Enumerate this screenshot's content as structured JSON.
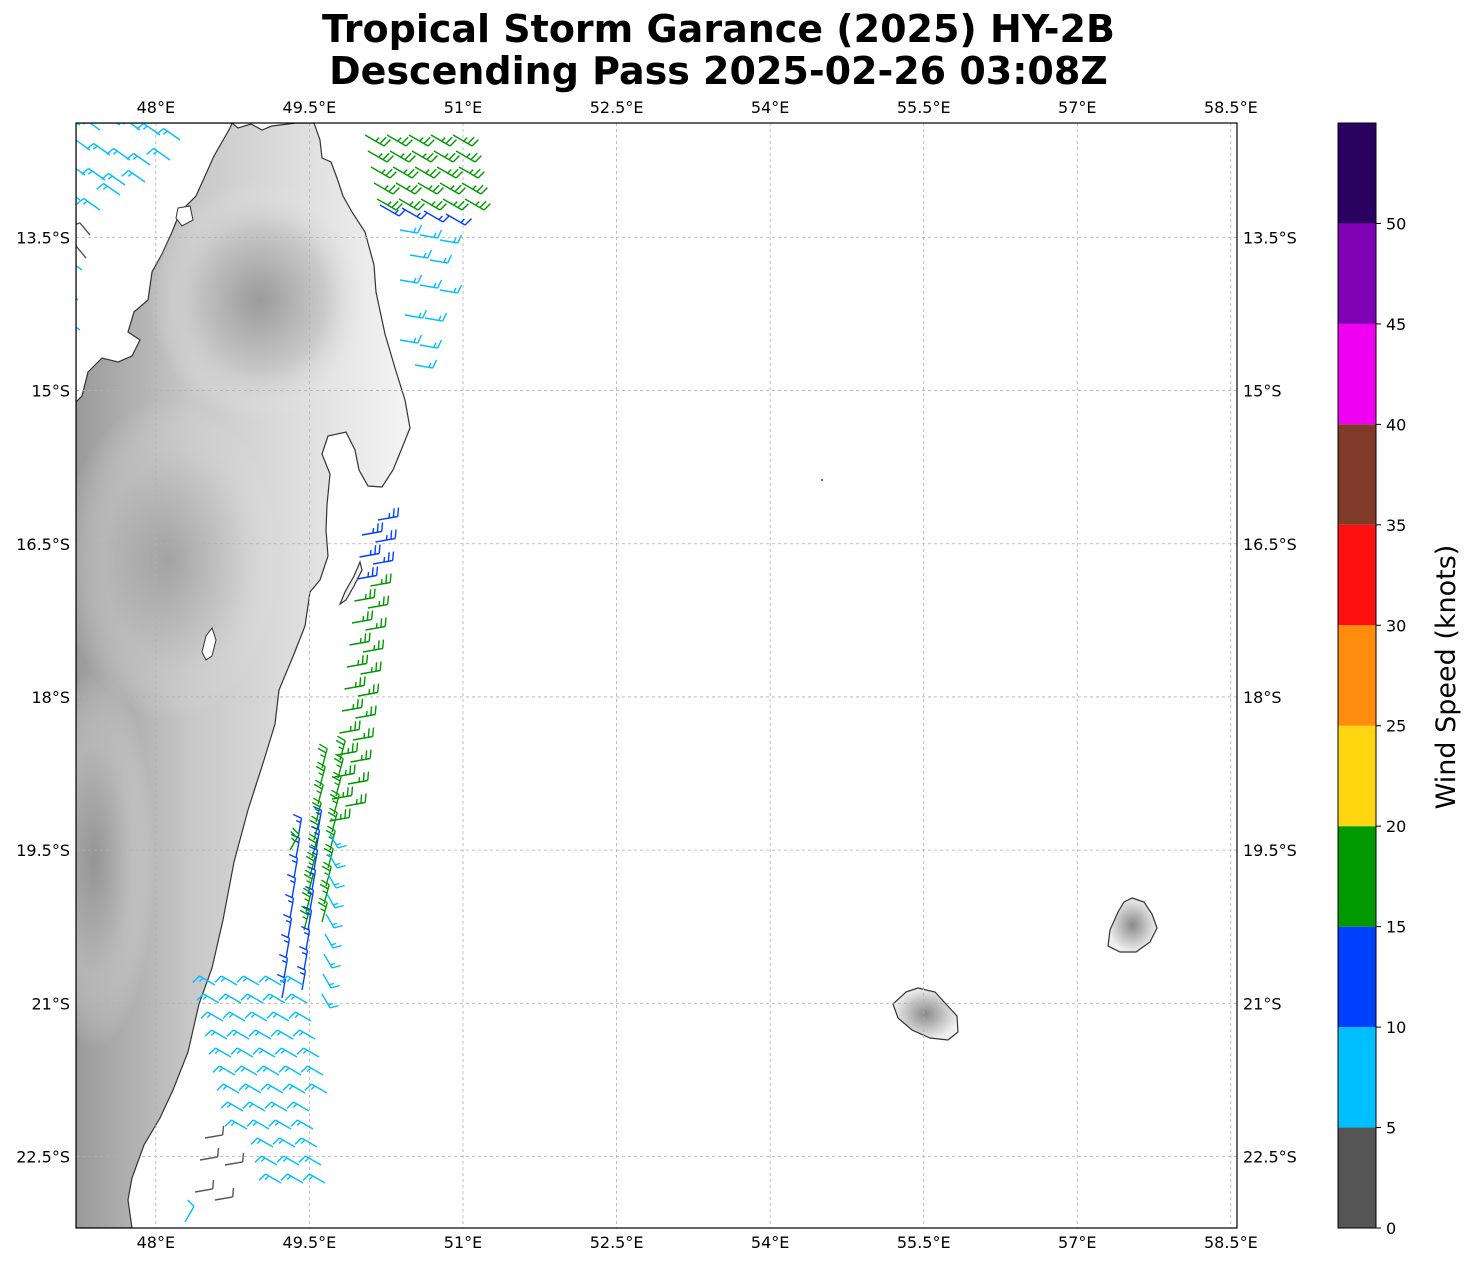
{
  "title": {
    "line1": "Tropical Storm Garance (2025) HY-2B",
    "line2": "Descending Pass 2025-02-26 03:08Z"
  },
  "map": {
    "lon_ticks": [
      "48°E",
      "49.5°E",
      "51°E",
      "52.5°E",
      "54°E",
      "55.5°E",
      "57°E",
      "58.5°E"
    ],
    "lat_ticks": [
      "13.5°S",
      "15°S",
      "16.5°S",
      "18°S",
      "19.5°S",
      "21°S",
      "22.5°S"
    ],
    "lon_values": [
      48,
      49.5,
      51,
      52.5,
      54,
      55.5,
      57,
      58.5
    ],
    "lat_values": [
      -13.5,
      -15,
      -16.5,
      -18,
      -19.5,
      -21,
      -22.5
    ],
    "lon_range": [
      47.22,
      58.56
    ],
    "lat_range": [
      -23.2,
      -12.38
    ],
    "grid": true,
    "gridline_style": "dashed gray",
    "features": [
      "Madagascar east coast",
      "Sainte-Marie island",
      "Réunion",
      "Mauritius",
      "topography shading (gray)"
    ],
    "barb_color_by_speed": true
  },
  "colorbar": {
    "label": "Wind Speed (knots)",
    "ticks": [
      "0",
      "5",
      "10",
      "15",
      "20",
      "25",
      "30",
      "35",
      "40",
      "45",
      "50"
    ],
    "bins": [
      {
        "from": 0,
        "to": 5,
        "color": "#555555"
      },
      {
        "from": 5,
        "to": 10,
        "color": "#00bfff"
      },
      {
        "from": 10,
        "to": 15,
        "color": "#0040ff"
      },
      {
        "from": 15,
        "to": 20,
        "color": "#009900"
      },
      {
        "from": 20,
        "to": 25,
        "color": "#ffd60f"
      },
      {
        "from": 25,
        "to": 30,
        "color": "#ff8c0d"
      },
      {
        "from": 30,
        "to": 35,
        "color": "#ff1010"
      },
      {
        "from": 35,
        "to": 40,
        "color": "#803a2a"
      },
      {
        "from": 40,
        "to": 45,
        "color": "#f000f0"
      },
      {
        "from": 45,
        "to": 50,
        "color": "#8000b5"
      },
      {
        "from": 50,
        "to": 55,
        "color": "#2a0060"
      }
    ]
  },
  "colors": {
    "calm": "#555555",
    "light": "#00bfff",
    "moderate": "#0040ff",
    "fresh": "#009900",
    "coast": "#333333",
    "grid": "#b0b0b0"
  }
}
